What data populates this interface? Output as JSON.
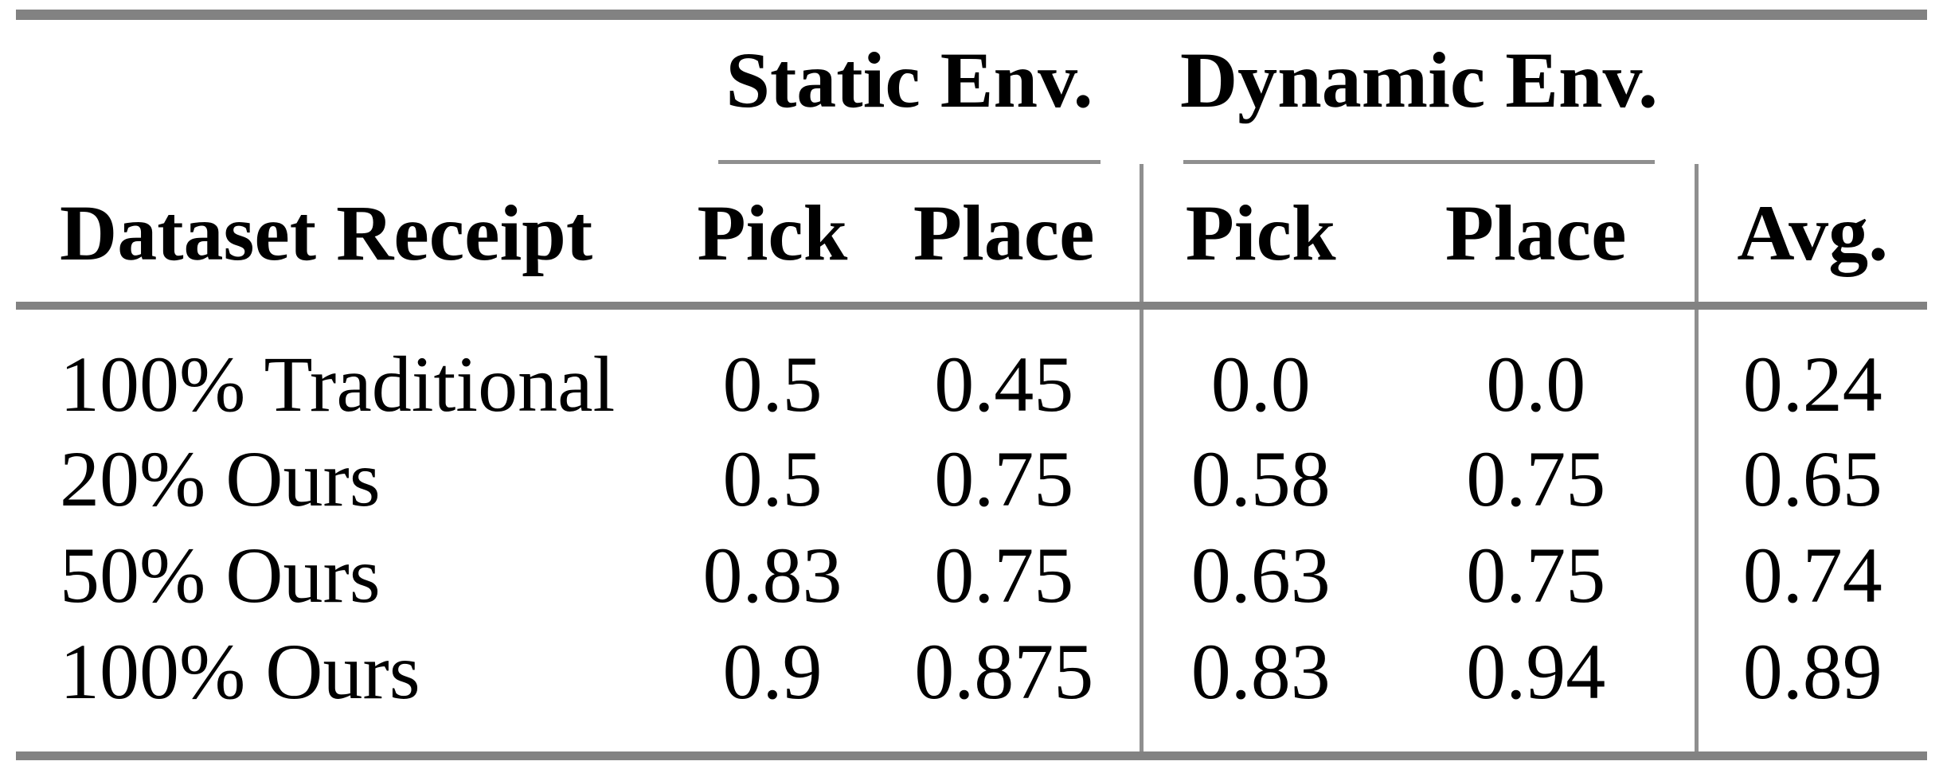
{
  "colors": {
    "background": "#ffffff",
    "text": "#000000",
    "rule_heavy": "#828282",
    "rule_light": "#8f8f8f"
  },
  "table": {
    "group_headers": [
      {
        "label": "Static Env."
      },
      {
        "label": "Dynamic Env."
      }
    ],
    "column_headers": {
      "dataset_receipt": "Dataset Receipt",
      "static_pick": "Pick",
      "static_place": "Place",
      "dynamic_pick": "Pick",
      "dynamic_place": "Place",
      "avg": "Avg."
    },
    "rows": [
      {
        "label": "100% Traditional",
        "static_pick": "0.5",
        "static_place": "0.45",
        "dynamic_pick": "0.0",
        "dynamic_place": "0.0",
        "avg": "0.24"
      },
      {
        "label": "20% Ours",
        "static_pick": "0.5",
        "static_place": "0.75",
        "dynamic_pick": "0.58",
        "dynamic_place": "0.75",
        "avg": "0.65"
      },
      {
        "label": "50% Ours",
        "static_pick": "0.83",
        "static_place": "0.75",
        "dynamic_pick": "0.63",
        "dynamic_place": "0.75",
        "avg": "0.74"
      },
      {
        "label": "100% Ours",
        "static_pick": "0.9",
        "static_place": "0.875",
        "dynamic_pick": "0.83",
        "dynamic_place": "0.94",
        "avg": "0.89"
      }
    ]
  }
}
